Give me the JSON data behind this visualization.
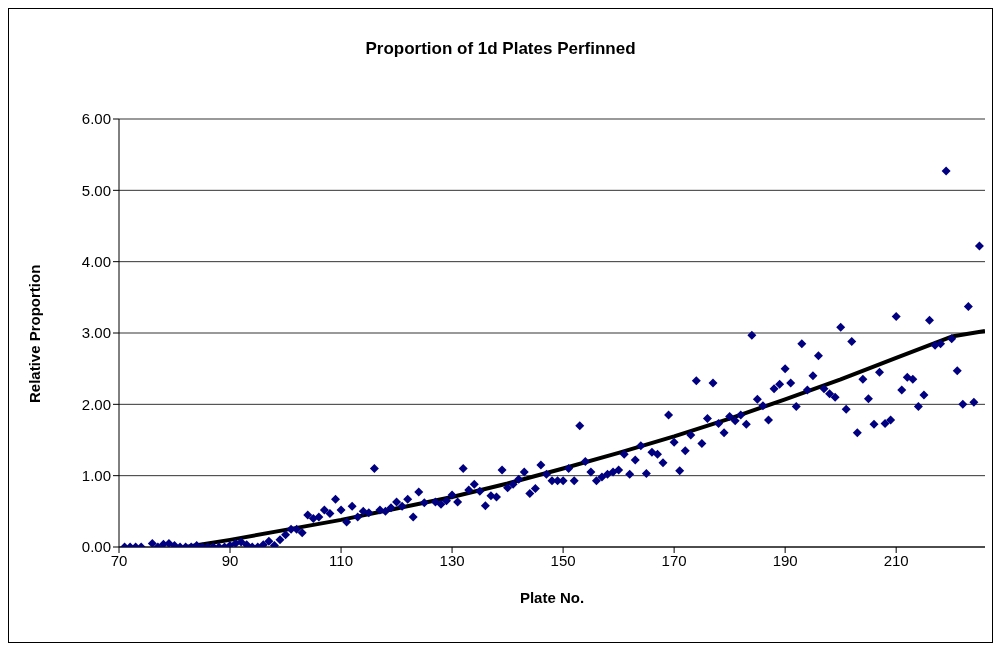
{
  "chart_data": {
    "type": "scatter",
    "title": "Proportion of 1d Plates Perfinned",
    "xlabel": "Plate No.",
    "ylabel": "Relative Proportion",
    "xlim": [
      70,
      226
    ],
    "xticks": [
      70,
      90,
      110,
      130,
      150,
      170,
      190,
      210
    ],
    "ylim": [
      0,
      6
    ],
    "yticks": [
      {
        "value": 0,
        "label": "0.00"
      },
      {
        "value": 1,
        "label": "1.00"
      },
      {
        "value": 2,
        "label": "2.00"
      },
      {
        "value": 3,
        "label": "3.00"
      },
      {
        "value": 4,
        "label": "4.00"
      },
      {
        "value": 5,
        "label": "5.00"
      },
      {
        "value": 6,
        "label": "6.00"
      }
    ],
    "grid": "y",
    "legend": false,
    "series": [
      {
        "color": "#000080",
        "marker": "diamond",
        "x": [
          71,
          72,
          73,
          74,
          76,
          77,
          78,
          79,
          80,
          81,
          82,
          83,
          84,
          85,
          86,
          87,
          88,
          89,
          90,
          91,
          92,
          93,
          94,
          95,
          96,
          97,
          98,
          99,
          100,
          101,
          102,
          103,
          104,
          105,
          106,
          107,
          108,
          109,
          110,
          111,
          112,
          113,
          114,
          115,
          116,
          117,
          118,
          119,
          120,
          121,
          122,
          123,
          124,
          125,
          127,
          128,
          129,
          130,
          131,
          132,
          133,
          134,
          135,
          136,
          137,
          138,
          139,
          140,
          141,
          142,
          143,
          144,
          145,
          146,
          147,
          148,
          149,
          150,
          151,
          152,
          153,
          154,
          155,
          156,
          157,
          158,
          159,
          160,
          161,
          162,
          163,
          164,
          165,
          166,
          167,
          168,
          169,
          170,
          171,
          172,
          173,
          174,
          175,
          176,
          177,
          178,
          179,
          180,
          181,
          182,
          183,
          184,
          185,
          186,
          187,
          188,
          189,
          190,
          191,
          192,
          193,
          194,
          195,
          196,
          197,
          198,
          199,
          200,
          201,
          202,
          203,
          204,
          205,
          206,
          207,
          208,
          209,
          210,
          211,
          212,
          213,
          214,
          215,
          216,
          217,
          218,
          219,
          220,
          221,
          222,
          223,
          224,
          225
        ],
        "values": [
          0,
          0,
          0,
          0,
          0.05,
          0,
          0.04,
          0.05,
          0.02,
          0,
          0,
          0,
          0.02,
          0,
          0,
          0,
          0,
          0,
          0.02,
          0.05,
          0.07,
          0.03,
          0,
          0,
          0.03,
          0.08,
          0.02,
          0.1,
          0.17,
          0.25,
          0.25,
          0.2,
          0.45,
          0.4,
          0.42,
          0.52,
          0.47,
          0.67,
          0.52,
          0.35,
          0.57,
          0.42,
          0.5,
          0.48,
          1.1,
          0.52,
          0.5,
          0.55,
          0.63,
          0.57,
          0.67,
          0.42,
          0.77,
          0.62,
          0.63,
          0.6,
          0.65,
          0.73,
          0.63,
          1.1,
          0.8,
          0.88,
          0.78,
          0.58,
          0.72,
          0.7,
          1.08,
          0.83,
          0.88,
          0.95,
          1.05,
          0.75,
          0.82,
          1.15,
          1.02,
          0.93,
          0.93,
          0.93,
          1.1,
          0.93,
          1.7,
          1.2,
          1.05,
          0.93,
          0.98,
          1.02,
          1.05,
          1.08,
          1.3,
          1.02,
          1.22,
          1.42,
          1.03,
          1.33,
          1.3,
          1.18,
          1.85,
          1.47,
          1.07,
          1.35,
          1.57,
          2.33,
          1.45,
          1.8,
          2.3,
          1.73,
          1.6,
          1.83,
          1.77,
          1.85,
          1.72,
          2.97,
          2.07,
          1.98,
          1.78,
          2.22,
          2.28,
          2.5,
          2.3,
          1.97,
          2.85,
          2.2,
          2.4,
          2.68,
          2.22,
          2.15,
          2.1,
          3.08,
          1.93,
          2.88,
          1.6,
          2.35,
          2.08,
          1.72,
          2.45,
          1.73,
          1.78,
          3.23,
          2.2,
          2.38,
          2.35,
          1.97,
          2.13,
          3.18,
          2.83,
          2.85,
          5.27,
          2.92,
          2.47,
          2.0,
          3.37,
          2.03,
          4.22
        ]
      },
      {
        "type": "line",
        "color": "#000000",
        "marker": "none",
        "line_style": "solid",
        "x": [
          82,
          90,
          100,
          110,
          120,
          130,
          140,
          150,
          160,
          170,
          180,
          190,
          200,
          210,
          220,
          226
        ],
        "values": [
          0,
          0.1,
          0.24,
          0.38,
          0.54,
          0.7,
          0.89,
          1.1,
          1.32,
          1.55,
          1.8,
          2.07,
          2.35,
          2.65,
          2.95,
          3.03
        ]
      }
    ]
  }
}
